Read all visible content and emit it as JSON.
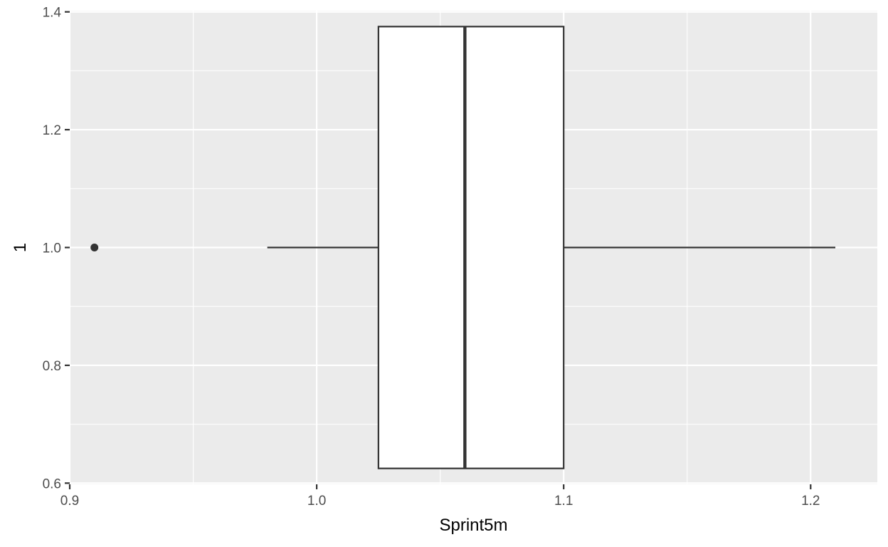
{
  "chart_data": {
    "type": "boxplot",
    "xlabel": "Sprint5m",
    "ylabel": "1",
    "xlim": [
      0.9,
      1.227
    ],
    "ylim": [
      0.598,
      1.402
    ],
    "x_ticks": [
      0.9,
      1.0,
      1.1,
      1.2
    ],
    "x_tick_labels": [
      "0.9",
      "1.0",
      "1.1",
      "1.2"
    ],
    "y_ticks": [
      0.6,
      0.8,
      1.0,
      1.2,
      1.4
    ],
    "y_tick_labels": [
      "0.6",
      "0.8",
      "1.0",
      "1.2",
      "1.4"
    ],
    "grid": true,
    "box": {
      "y": 1.0,
      "box_y_range": [
        0.625,
        1.375
      ],
      "whisker_low": 0.98,
      "q1": 1.025,
      "median": 1.06,
      "q3": 1.1,
      "whisker_high": 1.21,
      "outliers": [
        0.91
      ]
    },
    "colors": {
      "panel_background": "#ebebeb",
      "grid": "#ffffff",
      "box_fill": "#ffffff",
      "box_line": "#333333",
      "outlier": "#333333",
      "tick": "#333333"
    }
  }
}
